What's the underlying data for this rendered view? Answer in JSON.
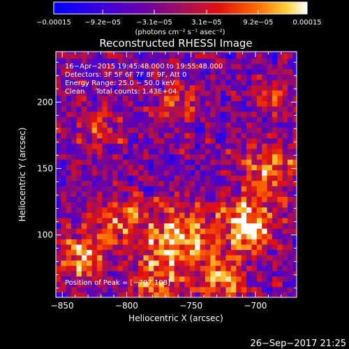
{
  "chart_data": {
    "type": "heatmap",
    "title": "Reconstructed RHESSI Image",
    "xlabel": "Heliocentric X (arcsec)",
    "ylabel": "Heliocentric Y (arcsec)",
    "xlim": [
      -855,
      -668
    ],
    "ylim": [
      53,
      238
    ],
    "x_ticks": [
      -850,
      -800,
      -750,
      -700
    ],
    "y_ticks": [
      100,
      150,
      200
    ],
    "x_tick_labels": [
      "−850",
      "−800",
      "−750",
      "−700"
    ],
    "y_tick_labels": [
      "100",
      "150",
      "200"
    ],
    "colorbar": {
      "range": [
        -0.00015,
        0.00015
      ],
      "ticks": [
        -0.00015,
        -9.2e-05,
        -3.1e-05,
        3.1e-05,
        9.2e-05,
        0.00015
      ],
      "tick_labels": [
        "−0.00015",
        "−9.2e−05",
        "−3.1e−05",
        "3.1e−05",
        "9.2e−05",
        "0.00015"
      ],
      "units_label": "(photons cm⁻² s⁻¹ asec⁻²)"
    },
    "annotations": {
      "time_range": "16−Apr−2015 19:45:48.000 to 19:55:48.000",
      "detectors": "Detectors: 3F 5F 6F 7F 8F 9F, Att 0",
      "energy": "Energy Range: 25.0 − 50.0 keV",
      "clean": "Clean     Total counts: 1.43E+04",
      "peak": "Position of Peak = [−707,108]"
    },
    "peak": [
      -707,
      108
    ],
    "grid": false,
    "legend": "colorbar-top"
  },
  "footer": {
    "timestamp": "26−Sep−2017 21:25"
  }
}
